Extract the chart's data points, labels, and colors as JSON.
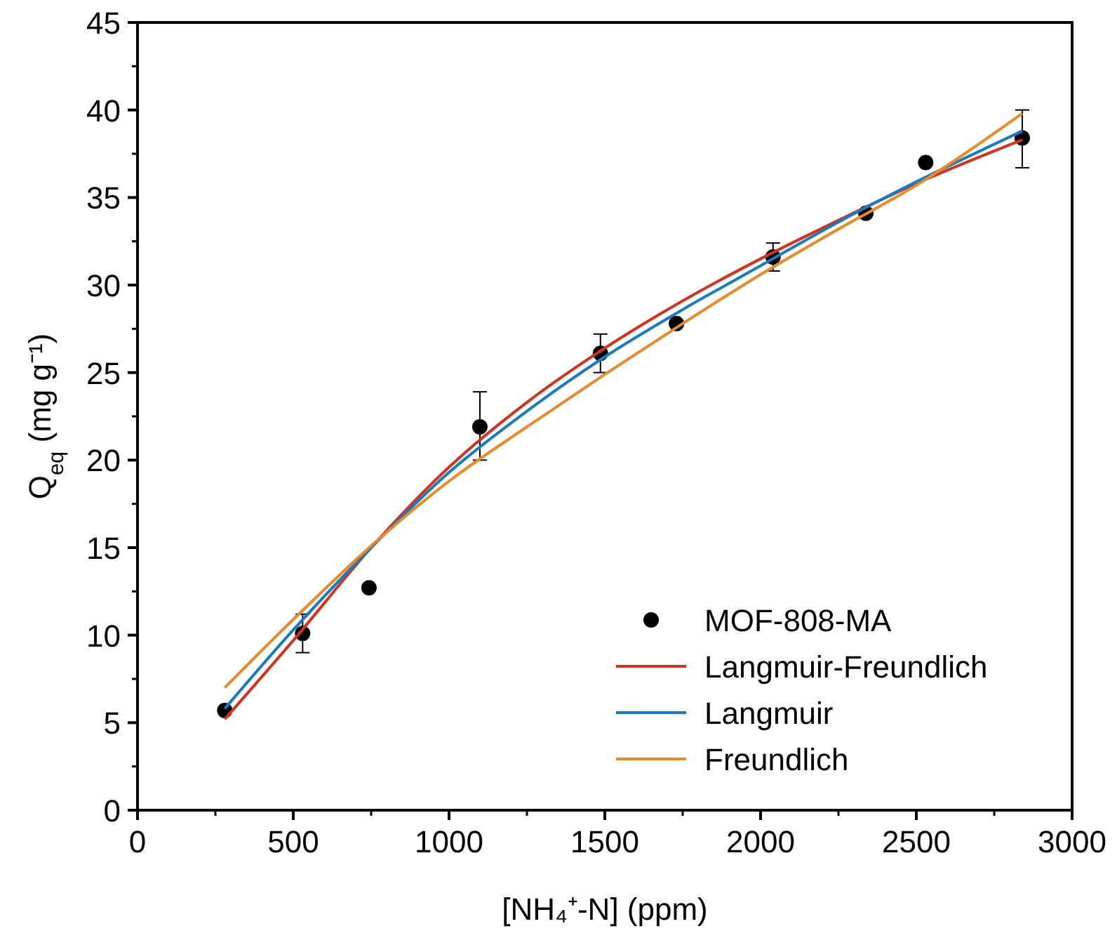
{
  "chart_data": {
    "type": "scatter",
    "xlabel": "[NH₄⁺-N] (ppm)",
    "ylabel": "Q$_{eq}$ (mg g⁻¹)",
    "xlim": [
      0,
      3000
    ],
    "xticks": [
      0,
      500,
      1000,
      1500,
      2000,
      2500,
      3000
    ],
    "ylim": [
      0,
      45
    ],
    "yticks": [
      0,
      5,
      10,
      15,
      20,
      25,
      30,
      35,
      40,
      45
    ],
    "grid": false,
    "legend": "bottom right",
    "series": [
      {
        "name": "MOF-808-MA",
        "color": "#000000",
        "marker": "circle",
        "x": [
          280,
          530,
          743,
          1099,
          1486,
          1730,
          2040,
          2338,
          2530,
          2840
        ],
        "values": [
          5.7,
          10.1,
          12.7,
          21.9,
          26.1,
          27.8,
          31.6,
          34.1,
          37.0,
          38.4
        ],
        "errors": [
          null,
          [
            9.0,
            11.2
          ],
          null,
          [
            20.0,
            23.9
          ],
          [
            25.0,
            27.2
          ],
          null,
          [
            30.8,
            32.4
          ],
          null,
          null,
          [
            36.7,
            40.0
          ]
        ]
      },
      {
        "name": "Langmuir-Freundlich",
        "type": "line",
        "color": "#d2321e",
        "x": [
          280,
          500,
          750,
          1000,
          1250,
          1500,
          1750,
          2000,
          2250,
          2500,
          2840
        ],
        "values": [
          5.2,
          9.7,
          15.0,
          19.6,
          23.3,
          26.4,
          29.1,
          31.5,
          33.7,
          35.8,
          38.3
        ]
      },
      {
        "name": "Langmuir",
        "type": "line",
        "color": "#1a7ac0",
        "x": [
          280,
          500,
          750,
          1000,
          1250,
          1500,
          1750,
          2000,
          2250,
          2500,
          2840
        ],
        "values": [
          5.8,
          10.3,
          15.0,
          19.3,
          22.8,
          25.9,
          28.6,
          31.1,
          33.6,
          35.9,
          38.8
        ]
      },
      {
        "name": "Freundlich",
        "type": "line",
        "color": "#e88a2a",
        "x": [
          280,
          500,
          750,
          1000,
          1250,
          1500,
          1750,
          2000,
          2250,
          2500,
          2840
        ],
        "values": [
          7.0,
          10.9,
          15.1,
          18.8,
          21.9,
          24.9,
          27.8,
          30.6,
          33.2,
          35.7,
          39.8
        ]
      }
    ]
  }
}
